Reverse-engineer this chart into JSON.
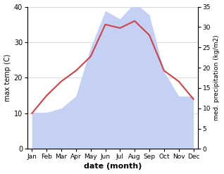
{
  "months": [
    "Jan",
    "Feb",
    "Mar",
    "Apr",
    "May",
    "Jun",
    "Jul",
    "Aug",
    "Sep",
    "Oct",
    "Nov",
    "Dec"
  ],
  "temperature": [
    10,
    15,
    19,
    22,
    26,
    35,
    34,
    36,
    32,
    22,
    19,
    14
  ],
  "precipitation": [
    9,
    9,
    10,
    13,
    25,
    34,
    32,
    36,
    33,
    19,
    13,
    13
  ],
  "temp_color": "#cc4444",
  "precip_fill_color": "#c5d0f5",
  "temp_ylim": [
    0,
    40
  ],
  "precip_ylim": [
    0,
    35
  ],
  "temp_yticks": [
    0,
    10,
    20,
    30,
    40
  ],
  "precip_yticks": [
    0,
    5,
    10,
    15,
    20,
    25,
    30,
    35
  ],
  "xlabel": "date (month)",
  "ylabel_left": "max temp (C)",
  "ylabel_right": "med. precipitation (kg/m2)",
  "bg_color": "#ffffff"
}
